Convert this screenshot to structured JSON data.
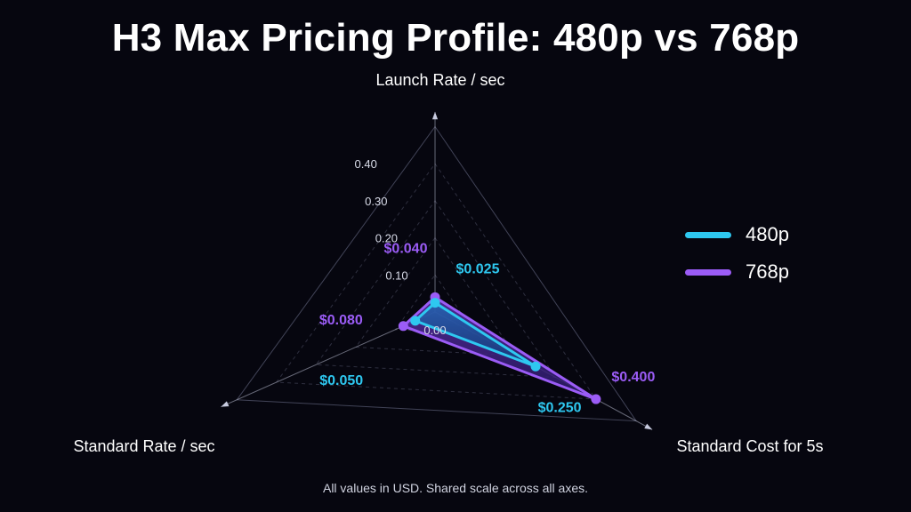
{
  "chart_data": {
    "type": "radar",
    "title": "H3 Max Pricing Profile: 480p vs 768p",
    "axes": [
      "Launch Rate / sec",
      "Standard Cost for 5s",
      "Standard Rate / sec"
    ],
    "scale": {
      "min": 0,
      "max": 0.5,
      "ticks": [
        0.0,
        0.1,
        0.2,
        0.3,
        0.4
      ],
      "tick_labels": [
        "0.00",
        "0.10",
        "0.20",
        "0.30",
        "0.40"
      ]
    },
    "series": [
      {
        "name": "480p",
        "values": [
          0.025,
          0.25,
          0.05
        ],
        "value_labels": [
          "$0.025",
          "$0.250",
          "$0.050"
        ],
        "color": "#2ec8f0"
      },
      {
        "name": "768p",
        "values": [
          0.04,
          0.4,
          0.08
        ],
        "value_labels": [
          "$0.040",
          "$0.400",
          "$0.080"
        ],
        "color": "#9b5cf6"
      }
    ],
    "legend_position": "right",
    "footnote": "All values in USD. Shared scale across all axes."
  }
}
